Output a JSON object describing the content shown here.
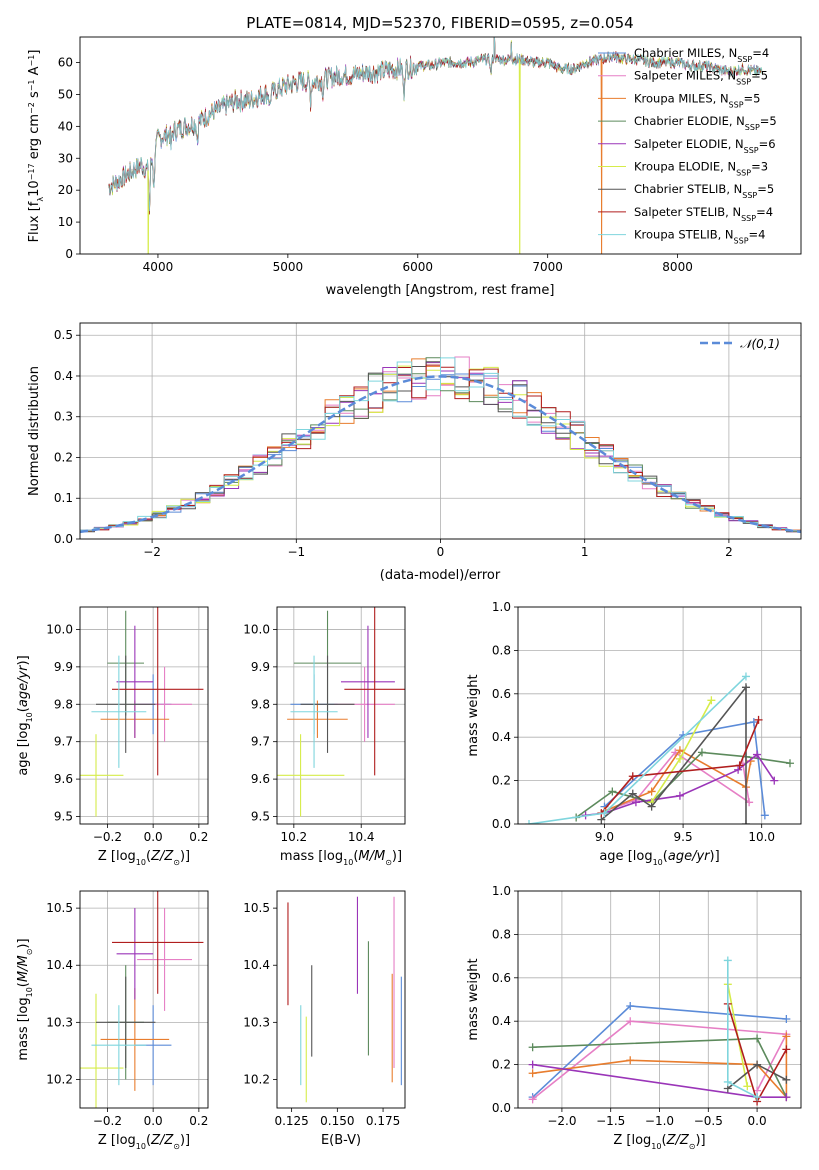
{
  "figure": {
    "title": "PLATE=0814, MJD=52370, FIBERID=0595, z=0.054"
  },
  "models": [
    {
      "name": "Chabrier MILES",
      "nssp": "4",
      "color": "#5b8bd8"
    },
    {
      "name": "Salpeter MILES",
      "nssp": "5",
      "color": "#e67fc5"
    },
    {
      "name": "Kroupa MILES",
      "nssp": "5",
      "color": "#e87d2e"
    },
    {
      "name": "Chabrier ELODIE",
      "nssp": "5",
      "color": "#5c8a5c"
    },
    {
      "name": "Salpeter ELODIE",
      "nssp": "6",
      "color": "#9a35b8"
    },
    {
      "name": "Kroupa ELODIE",
      "nssp": "3",
      "color": "#d6ec4a"
    },
    {
      "name": "Chabrier STELIB",
      "nssp": "5",
      "color": "#555555"
    },
    {
      "name": "Salpeter STELIB",
      "nssp": "4",
      "color": "#b01e1e"
    },
    {
      "name": "Kroupa STELIB",
      "nssp": "4",
      "color": "#7fd5dd"
    }
  ],
  "chart_data": [
    {
      "id": "spectrum",
      "type": "line",
      "xlabel": "wavelength [Angstrom, rest frame]",
      "ylabel": "Flux [f_λ10^-17 erg cm^-2 s^-1 A^-1]",
      "xlim": [
        3400,
        8950
      ],
      "ylim": [
        0,
        68
      ],
      "xticks": [
        4000,
        5000,
        6000,
        7000,
        8000
      ],
      "yticks": [
        0,
        10,
        20,
        30,
        40,
        50,
        60
      ],
      "grid": false,
      "legend": "top-right",
      "continuum": {
        "x": [
          3620,
          3700,
          3800,
          3870,
          3930,
          3980,
          4000,
          4100,
          4200,
          4300,
          4400,
          4500,
          4600,
          4700,
          4800,
          4900,
          5000,
          5100,
          5200,
          5300,
          5400,
          5500,
          5600,
          5700,
          5800,
          5900,
          6000,
          6100,
          6200,
          6300,
          6400,
          6500,
          6600,
          6700,
          6800,
          6900,
          7000,
          7100,
          7200,
          7300,
          7400,
          7500,
          7600,
          7700,
          7800,
          7900,
          8000,
          8100,
          8200,
          8300,
          8400,
          8500,
          8650
        ],
        "y": [
          21,
          23,
          26,
          28,
          26,
          33,
          36,
          38,
          40,
          41,
          44,
          46,
          48,
          48,
          50,
          51,
          53,
          54,
          54,
          55,
          56,
          56,
          57,
          57,
          58,
          58,
          59,
          59,
          60,
          60,
          60,
          61,
          61,
          61,
          61,
          60,
          60,
          58,
          58,
          60,
          61,
          62,
          61,
          61,
          60,
          60,
          60,
          59,
          59,
          58,
          57,
          58,
          57
        ]
      },
      "absorption_features": [
        {
          "x": 3934,
          "depth": 14
        },
        {
          "x": 3969,
          "depth": 12
        },
        {
          "x": 4102,
          "depth": 5
        },
        {
          "x": 4304,
          "depth": 6
        },
        {
          "x": 4861,
          "depth": 5
        },
        {
          "x": 5175,
          "depth": 6
        },
        {
          "x": 5270,
          "depth": 4
        },
        {
          "x": 5892,
          "depth": 9
        },
        {
          "x": 6563,
          "depth": 5
        }
      ],
      "emission_features": [
        {
          "x": 6590,
          "height": 8
        },
        {
          "x": 6720,
          "height": 6
        }
      ],
      "dropouts": [
        {
          "x": 3925,
          "color": "#d6ec4a"
        },
        {
          "x": 6785,
          "color": "#d6ec4a"
        },
        {
          "x": 7415,
          "color": "#e87d2e"
        }
      ]
    },
    {
      "id": "residuals",
      "type": "step",
      "xlabel": "(data-model)/error",
      "ylabel": "Normed distribution",
      "xlim": [
        -2.5,
        2.5
      ],
      "ylim": [
        0,
        0.53
      ],
      "xticks": [
        -2,
        -1,
        0,
        1,
        2
      ],
      "yticks": [
        0.0,
        0.1,
        0.2,
        0.3,
        0.4,
        0.5
      ],
      "grid": true,
      "legend": "top-right",
      "reference_curve": {
        "label": "𝒩(0,1)",
        "mean": 0,
        "sigma": 1,
        "color": "#5b8bd8"
      }
    },
    {
      "id": "age-vs-Z",
      "type": "scatter",
      "xlabel": "Z [log₁₀(Z/Z☉)]",
      "ylabel": "age  [log₁₀(age/yr)]",
      "xlim": [
        -0.32,
        0.24
      ],
      "ylim": [
        9.48,
        10.06
      ],
      "xticks": [
        -0.2,
        0.0,
        0.2
      ],
      "yticks": [
        9.5,
        9.6,
        9.7,
        9.8,
        9.9,
        10.0
      ],
      "grid": true,
      "points": [
        {
          "model": "Chabrier MILES",
          "x": 0.0,
          "xerr": 0.08,
          "y": 9.8,
          "yerr": 0.08
        },
        {
          "model": "Salpeter MILES",
          "x": 0.05,
          "xerr": 0.12,
          "y": 9.8,
          "yerr": 0.1
        },
        {
          "model": "Kroupa MILES",
          "x": -0.08,
          "xerr": 0.15,
          "y": 9.76,
          "yerr": 0.05
        },
        {
          "model": "Chabrier ELODIE",
          "x": -0.12,
          "xerr": 0.08,
          "y": 9.91,
          "yerr": 0.14
        },
        {
          "model": "Salpeter ELODIE",
          "x": -0.08,
          "xerr": 0.08,
          "y": 9.86,
          "yerr": 0.15
        },
        {
          "model": "Kroupa ELODIE",
          "x": -0.25,
          "xerr": 0.12,
          "y": 9.61,
          "yerr": 0.11
        },
        {
          "model": "Chabrier STELIB",
          "x": -0.12,
          "xerr": 0.13,
          "y": 9.8,
          "yerr": 0.13
        },
        {
          "model": "Salpeter STELIB",
          "x": 0.02,
          "xerr": 0.2,
          "y": 9.84,
          "yerr": 0.23
        },
        {
          "model": "Kroupa STELIB",
          "x": -0.15,
          "xerr": 0.12,
          "y": 9.78,
          "yerr": 0.15
        }
      ]
    },
    {
      "id": "age-vs-mass",
      "type": "scatter",
      "xlabel": "mass [log₁₀(M/M☉)]",
      "ylabel": "",
      "xlim": [
        10.15,
        10.53
      ],
      "ylim": [
        9.48,
        10.06
      ],
      "xticks": [
        10.2,
        10.4
      ],
      "yticks": [
        9.5,
        9.6,
        9.7,
        9.8,
        9.9,
        10.0
      ],
      "grid": true,
      "points": [
        {
          "model": "Chabrier MILES",
          "x": 10.26,
          "xerr": 0.07,
          "y": 9.8,
          "yerr": 0.08
        },
        {
          "model": "Salpeter MILES",
          "x": 10.41,
          "xerr": 0.09,
          "y": 9.8,
          "yerr": 0.1
        },
        {
          "model": "Kroupa MILES",
          "x": 10.27,
          "xerr": 0.09,
          "y": 9.76,
          "yerr": 0.05
        },
        {
          "model": "Chabrier ELODIE",
          "x": 10.3,
          "xerr": 0.1,
          "y": 9.91,
          "yerr": 0.14
        },
        {
          "model": "Salpeter ELODIE",
          "x": 10.42,
          "xerr": 0.08,
          "y": 9.86,
          "yerr": 0.15
        },
        {
          "model": "Kroupa ELODIE",
          "x": 10.22,
          "xerr": 0.13,
          "y": 9.61,
          "yerr": 0.11
        },
        {
          "model": "Chabrier STELIB",
          "x": 10.3,
          "xerr": 0.08,
          "y": 9.8,
          "yerr": 0.13
        },
        {
          "model": "Salpeter STELIB",
          "x": 10.44,
          "xerr": 0.09,
          "y": 9.84,
          "yerr": 0.23
        },
        {
          "model": "Kroupa STELIB",
          "x": 10.26,
          "xerr": 0.07,
          "y": 9.78,
          "yerr": 0.15
        }
      ]
    },
    {
      "id": "weight-vs-age",
      "type": "line",
      "xlabel": "age  [log₁₀(age/yr)]",
      "ylabel": "mass weight",
      "xlim": [
        8.45,
        10.25
      ],
      "ylim": [
        0,
        1
      ],
      "xticks": [
        9.0,
        9.5,
        10.0
      ],
      "yticks": [
        0.0,
        0.2,
        0.4,
        0.6,
        0.8,
        1.0
      ],
      "grid": true,
      "series": [
        {
          "model": "Chabrier MILES",
          "x": [
            9.0,
            9.5,
            9.95,
            10.02
          ],
          "y": [
            0.08,
            0.41,
            0.47,
            0.04
          ]
        },
        {
          "model": "Salpeter MILES",
          "x": [
            9.0,
            9.2,
            9.45,
            9.92,
            9.88
          ],
          "y": [
            0.06,
            0.11,
            0.33,
            0.1,
            0.28
          ]
        },
        {
          "model": "Kroupa MILES",
          "x": [
            9.0,
            9.3,
            9.48,
            9.9,
            9.93
          ],
          "y": [
            0.06,
            0.15,
            0.34,
            0.17,
            0.29
          ]
        },
        {
          "model": "Chabrier ELODIE",
          "x": [
            8.82,
            9.05,
            9.3,
            9.62,
            9.9,
            10.18
          ],
          "y": [
            0.03,
            0.15,
            0.1,
            0.33,
            0.31,
            0.28
          ]
        },
        {
          "model": "Salpeter ELODIE",
          "x": [
            8.88,
            9.0,
            9.2,
            9.48,
            9.85,
            9.97,
            10.08
          ],
          "y": [
            0.04,
            0.05,
            0.1,
            0.13,
            0.25,
            0.32,
            0.2
          ]
        },
        {
          "model": "Kroupa ELODIE",
          "x": [
            9.3,
            9.48,
            9.68
          ],
          "y": [
            0.1,
            0.3,
            0.57
          ]
        },
        {
          "model": "Chabrier STELIB",
          "x": [
            8.98,
            9.18,
            9.3,
            9.9,
            9.9
          ],
          "y": [
            0.02,
            0.14,
            0.08,
            0.63,
            0.0
          ]
        },
        {
          "model": "Salpeter STELIB",
          "x": [
            8.98,
            9.18,
            9.86,
            9.98
          ],
          "y": [
            0.05,
            0.22,
            0.27,
            0.48
          ]
        },
        {
          "model": "Kroupa STELIB",
          "x": [
            8.52,
            9.0,
            9.9
          ],
          "y": [
            0.0,
            0.05,
            0.68
          ]
        }
      ]
    },
    {
      "id": "mass-vs-Z",
      "type": "scatter",
      "xlabel": "Z [log₁₀(Z/Z☉)]",
      "ylabel": "mass [log₁₀(M/M☉)]",
      "xlim": [
        -0.32,
        0.24
      ],
      "ylim": [
        10.15,
        10.53
      ],
      "xticks": [
        -0.2,
        0.0,
        0.2
      ],
      "yticks": [
        10.2,
        10.3,
        10.4,
        10.5
      ],
      "grid": true,
      "points": [
        {
          "model": "Chabrier MILES",
          "x": 0.0,
          "xerr": 0.08,
          "y": 10.26,
          "yerr": 0.07
        },
        {
          "model": "Salpeter MILES",
          "x": 0.05,
          "xerr": 0.12,
          "y": 10.41,
          "yerr": 0.09
        },
        {
          "model": "Kroupa MILES",
          "x": -0.08,
          "xerr": 0.15,
          "y": 10.27,
          "yerr": 0.09
        },
        {
          "model": "Chabrier ELODIE",
          "x": -0.12,
          "xerr": 0.08,
          "y": 10.3,
          "yerr": 0.1
        },
        {
          "model": "Salpeter ELODIE",
          "x": -0.08,
          "xerr": 0.08,
          "y": 10.42,
          "yerr": 0.08
        },
        {
          "model": "Kroupa ELODIE",
          "x": -0.25,
          "xerr": 0.12,
          "y": 10.22,
          "yerr": 0.13
        },
        {
          "model": "Chabrier STELIB",
          "x": -0.12,
          "xerr": 0.13,
          "y": 10.3,
          "yerr": 0.08
        },
        {
          "model": "Salpeter STELIB",
          "x": 0.02,
          "xerr": 0.2,
          "y": 10.44,
          "yerr": 0.09
        },
        {
          "model": "Kroupa STELIB",
          "x": -0.15,
          "xerr": 0.12,
          "y": 10.26,
          "yerr": 0.07
        }
      ]
    },
    {
      "id": "mass-vs-ebv",
      "type": "errorbar",
      "xlabel": "E(B-V)",
      "ylabel": "",
      "xlim": [
        0.117,
        0.187
      ],
      "ylim": [
        10.15,
        10.53
      ],
      "xticks": [
        0.125,
        0.15,
        0.175
      ],
      "yticks": [
        10.2,
        10.3,
        10.4,
        10.5
      ],
      "grid": false,
      "points": [
        {
          "model": "Chabrier MILES",
          "x": 0.185,
          "y": 10.285,
          "yerr": 0.095
        },
        {
          "model": "Salpeter MILES",
          "x": 0.181,
          "y": 10.37,
          "yerr": 0.15
        },
        {
          "model": "Kroupa MILES",
          "x": 0.18,
          "y": 10.29,
          "yerr": 0.095
        },
        {
          "model": "Chabrier ELODIE",
          "x": 0.167,
          "y": 10.342,
          "yerr": 0.1
        },
        {
          "model": "Salpeter ELODIE",
          "x": 0.161,
          "y": 10.435,
          "yerr": 0.085
        },
        {
          "model": "Kroupa ELODIE",
          "x": 0.133,
          "y": 10.235,
          "yerr": 0.075
        },
        {
          "model": "Chabrier STELIB",
          "x": 0.136,
          "y": 10.32,
          "yerr": 0.08
        },
        {
          "model": "Salpeter STELIB",
          "x": 0.123,
          "y": 10.42,
          "yerr": 0.09
        },
        {
          "model": "Kroupa STELIB",
          "x": 0.13,
          "y": 10.26,
          "yerr": 0.07
        }
      ]
    },
    {
      "id": "weight-vs-Z",
      "type": "line",
      "xlabel": "Z [log₁₀(Z/Z☉)]",
      "ylabel": "mass weight",
      "xlim": [
        -2.45,
        0.45
      ],
      "ylim": [
        0,
        1
      ],
      "xticks": [
        -2.0,
        -1.5,
        -1.0,
        -0.5,
        0.0
      ],
      "yticks": [
        0.0,
        0.2,
        0.4,
        0.6,
        0.8,
        1.0
      ],
      "grid": true,
      "series": [
        {
          "model": "Chabrier MILES",
          "x": [
            -2.3,
            -1.3,
            0.3
          ],
          "y": [
            0.05,
            0.47,
            0.41
          ]
        },
        {
          "model": "Salpeter MILES",
          "x": [
            -2.3,
            -1.3,
            0.3,
            0.0
          ],
          "y": [
            0.04,
            0.4,
            0.34,
            0.08
          ]
        },
        {
          "model": "Kroupa MILES",
          "x": [
            -2.3,
            -1.3,
            0.0,
            0.3,
            0.3
          ],
          "y": [
            0.16,
            0.22,
            0.2,
            0.05,
            0.33
          ]
        },
        {
          "model": "Chabrier ELODIE",
          "x": [
            -2.3,
            0.0,
            0.3
          ],
          "y": [
            0.28,
            0.32,
            0.05
          ]
        },
        {
          "model": "Salpeter ELODIE",
          "x": [
            -2.3,
            0.0,
            0.3
          ],
          "y": [
            0.2,
            0.05,
            0.05
          ]
        },
        {
          "model": "Kroupa ELODIE",
          "x": [
            -0.3,
            -0.1
          ],
          "y": [
            0.57,
            0.1
          ]
        },
        {
          "model": "Chabrier STELIB",
          "x": [
            -0.3,
            0.0,
            0.3
          ],
          "y": [
            0.09,
            0.2,
            0.13
          ]
        },
        {
          "model": "Salpeter STELIB",
          "x": [
            -0.3,
            0.0,
            0.3
          ],
          "y": [
            0.48,
            0.03,
            0.27
          ]
        },
        {
          "model": "Kroupa STELIB",
          "x": [
            -0.3,
            -0.3,
            0.0
          ],
          "y": [
            0.68,
            0.12,
            0.05
          ]
        }
      ]
    }
  ]
}
